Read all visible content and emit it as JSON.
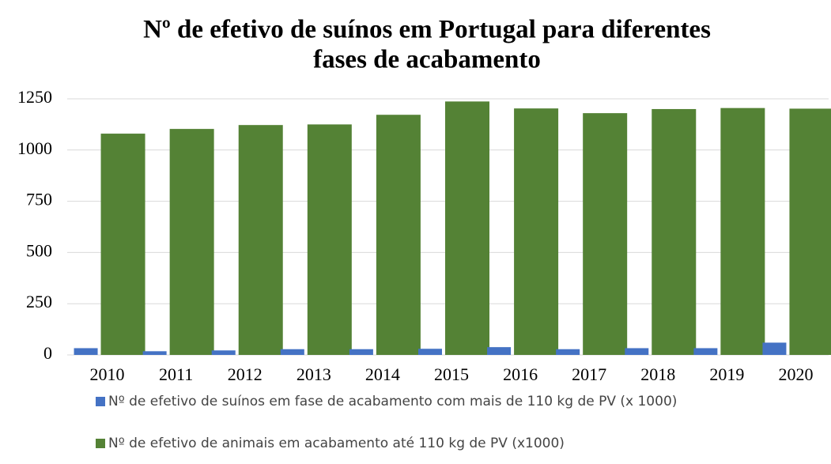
{
  "chart_data": {
    "type": "bar",
    "title": [
      "Nº de efetivo de suínos em Portugal para diferentes",
      "fases de acabamento"
    ],
    "categories": [
      "2010",
      "2011",
      "2012",
      "2013",
      "2014",
      "2015",
      "2016",
      "2017",
      "2018",
      "2019",
      "2020"
    ],
    "series": [
      {
        "name": "Nº de efetivo de suínos em fase de acabamento com mais de 110 kg de PV (x 1000)",
        "color": "#4472c4",
        "values": [
          33,
          18,
          22,
          28,
          28,
          30,
          38,
          28,
          33,
          33,
          60
        ]
      },
      {
        "name": "Nº de efetivo de animais em acabamento até 110 kg de PV (x1000)",
        "color": "#548235",
        "values": [
          1080,
          1103,
          1122,
          1125,
          1172,
          1237,
          1203,
          1180,
          1200,
          1205,
          1202
        ]
      }
    ],
    "ylim": [
      0,
      1250
    ],
    "yticks": [
      0,
      250,
      500,
      750,
      1000,
      1250
    ],
    "grid": true
  }
}
